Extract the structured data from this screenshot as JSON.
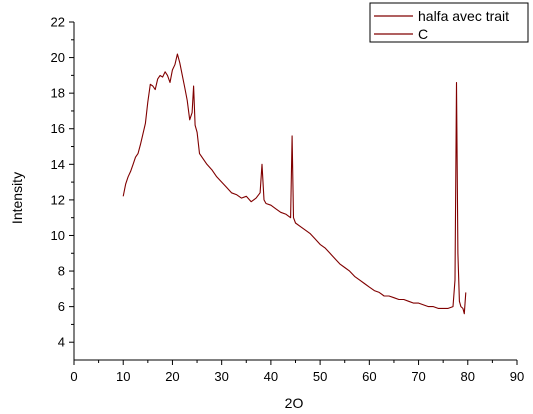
{
  "chart_data": {
    "type": "line",
    "title": "",
    "xlabel": "2O",
    "ylabel": "Intensity",
    "xlim": [
      0,
      90
    ],
    "ylim": [
      3,
      22
    ],
    "xticks": [
      0,
      10,
      20,
      30,
      40,
      50,
      60,
      70,
      80,
      90
    ],
    "yticks": [
      4,
      6,
      8,
      10,
      12,
      14,
      16,
      18,
      20,
      22
    ],
    "grid": false,
    "legend_position": "top-right",
    "line_color": "#800000",
    "legend": [
      "halfa avec trait",
      "C"
    ],
    "series": [
      {
        "name": "halfa avec trait",
        "x": [
          10,
          10.5,
          11,
          11.5,
          12,
          12.5,
          13,
          13.5,
          14,
          14.5,
          15,
          15.5,
          16,
          16.5,
          17,
          17.5,
          18,
          18.5,
          19,
          19.5,
          20,
          20.5,
          21,
          21.5,
          22,
          22.5,
          23,
          23.5,
          24,
          24.3,
          24.6,
          25,
          25.5,
          26,
          27,
          28,
          29,
          30,
          31,
          32,
          33,
          34,
          35,
          36,
          37,
          37.8,
          38.2,
          38.6,
          39,
          40,
          41,
          42,
          43,
          44,
          44.3,
          44.6,
          45,
          46,
          47,
          48,
          49,
          50,
          51,
          52,
          53,
          54,
          55,
          56,
          57,
          58,
          59,
          60,
          61,
          62,
          63,
          64,
          65,
          66,
          67,
          68,
          69,
          70,
          71,
          72,
          73,
          74,
          75,
          76,
          77,
          77.4,
          77.7,
          78,
          78.3,
          78.6,
          79,
          79.3,
          79.6
        ],
        "values": [
          12.2,
          12.9,
          13.3,
          13.6,
          14.0,
          14.4,
          14.6,
          15.1,
          15.7,
          16.3,
          17.5,
          18.5,
          18.4,
          18.2,
          18.8,
          19.0,
          18.9,
          19.2,
          19.0,
          18.6,
          19.3,
          19.6,
          20.2,
          19.7,
          19.0,
          18.3,
          17.6,
          16.5,
          16.9,
          18.4,
          16.2,
          15.8,
          14.6,
          14.4,
          14.0,
          13.7,
          13.3,
          13.0,
          12.7,
          12.4,
          12.3,
          12.1,
          12.2,
          11.9,
          12.1,
          12.4,
          14.0,
          12.0,
          11.8,
          11.7,
          11.5,
          11.3,
          11.2,
          11.0,
          15.6,
          11.0,
          10.7,
          10.5,
          10.3,
          10.1,
          9.8,
          9.5,
          9.3,
          9.0,
          8.7,
          8.4,
          8.2,
          8.0,
          7.7,
          7.5,
          7.3,
          7.1,
          6.9,
          6.8,
          6.6,
          6.6,
          6.5,
          6.4,
          6.4,
          6.3,
          6.2,
          6.2,
          6.1,
          6.0,
          6.0,
          5.9,
          5.9,
          5.9,
          6.0,
          7.5,
          18.6,
          9.0,
          6.3,
          6.0,
          5.9,
          5.6,
          6.8
        ]
      }
    ]
  }
}
